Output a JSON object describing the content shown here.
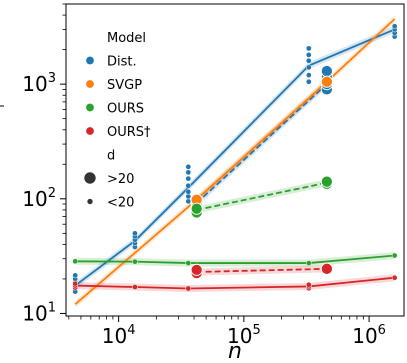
{
  "chart_data": {
    "type": "line",
    "xlabel": "n",
    "ylabel": "",
    "xscale": "log",
    "yscale": "log",
    "xlim": [
      3800,
      1900000
    ],
    "ylim": [
      9.5,
      5000
    ],
    "x_ticks": [
      {
        "value": 10000,
        "base": "10",
        "exp": "4"
      },
      {
        "value": 100000,
        "base": "10",
        "exp": "5"
      },
      {
        "value": 1000000,
        "base": "10",
        "exp": "6"
      }
    ],
    "y_ticks": [
      {
        "value": 10,
        "base": "10",
        "exp": "1"
      },
      {
        "value": 100,
        "base": "10",
        "exp": "2"
      },
      {
        "value": 1000,
        "base": "10",
        "exp": "3"
      }
    ],
    "grid": false,
    "legend": {
      "placement": "top-left",
      "hue_title": "Model",
      "size_title": "d",
      "size_entries": [
        ">20",
        "<20"
      ]
    },
    "series": [
      {
        "name": "Dist.",
        "color": "#1f77b4",
        "lines": [
          {
            "style": "solid",
            "x": [
              4500,
              13500,
              36000,
              330000,
              1600000
            ],
            "y": [
              17.5,
              43,
              125,
              1450,
              3000
            ]
          },
          {
            "style": "dashed",
            "x": [
              42000,
              460000
            ],
            "y": [
              92,
              1000
            ]
          }
        ],
        "points": [
          {
            "size": "small",
            "x": 4500,
            "y": [
              15.5,
              17,
              18.5,
              20,
              21.5
            ]
          },
          {
            "size": "small",
            "x": 13500,
            "y": [
              38,
              41,
              44,
              47,
              50
            ]
          },
          {
            "size": "small",
            "x": 36000,
            "y": [
              95,
              105,
              115,
              130,
              150,
              170,
              190
            ]
          },
          {
            "size": "small",
            "x": 330000,
            "y": [
              1050,
              1200,
              1400,
              1600,
              1800,
              2050
            ]
          },
          {
            "size": "small",
            "x": 1600000,
            "y": [
              2600,
              2800,
              3000,
              3200
            ]
          },
          {
            "size": "large",
            "x": 42000,
            "y": [
              88,
              93,
              98
            ]
          },
          {
            "size": "large",
            "x": 460000,
            "y": [
              900,
              1000,
              1150,
              1300
            ]
          }
        ]
      },
      {
        "name": "SVGP",
        "color": "#ff7f0e",
        "lines": [
          {
            "style": "solid",
            "x": [
              4500,
              36000,
              330000,
              1600000
            ],
            "y": [
              12,
              85,
              750,
              3700
            ]
          },
          {
            "style": "dashed",
            "x": [
              42000,
              460000
            ],
            "y": [
              98,
              1050
            ]
          }
        ],
        "points": [
          {
            "size": "large",
            "x": 42000,
            "y": [
              98
            ]
          },
          {
            "size": "large",
            "x": 460000,
            "y": [
              1050
            ]
          }
        ]
      },
      {
        "name": "OURS",
        "color": "#2ca02c",
        "lines": [
          {
            "style": "solid",
            "x": [
              4500,
              13500,
              36000,
              330000,
              1600000
            ],
            "y": [
              28.5,
              28.3,
              27.5,
              27.5,
              32
            ]
          },
          {
            "style": "dashed",
            "x": [
              42000,
              460000
            ],
            "y": [
              80,
              138
            ]
          }
        ],
        "points": [
          {
            "size": "small",
            "x": 4500,
            "y": [
              28.5
            ]
          },
          {
            "size": "small",
            "x": 13500,
            "y": [
              28.3
            ]
          },
          {
            "size": "small",
            "x": 36000,
            "y": [
              27.5
            ]
          },
          {
            "size": "small",
            "x": 330000,
            "y": [
              27.5
            ]
          },
          {
            "size": "small",
            "x": 1600000,
            "y": [
              32
            ]
          },
          {
            "size": "large",
            "x": 42000,
            "y": [
              76,
              82
            ]
          },
          {
            "size": "large",
            "x": 460000,
            "y": [
              135,
              141
            ]
          }
        ]
      },
      {
        "name": "OURS†",
        "color": "#d62728",
        "lines": [
          {
            "style": "solid",
            "x": [
              4500,
              13500,
              36000,
              330000,
              1600000
            ],
            "y": [
              17.5,
              17,
              16.5,
              17.2,
              20.5
            ]
          },
          {
            "style": "dashed",
            "x": [
              42000,
              460000
            ],
            "y": [
              23,
              24.5
            ]
          }
        ],
        "points": [
          {
            "size": "small",
            "x": 4500,
            "y": [
              16.8,
              17.5,
              18.2
            ]
          },
          {
            "size": "small",
            "x": 13500,
            "y": [
              17
            ]
          },
          {
            "size": "small",
            "x": 36000,
            "y": [
              16.5
            ]
          },
          {
            "size": "small",
            "x": 330000,
            "y": [
              16.6,
              17.2,
              17.8
            ]
          },
          {
            "size": "small",
            "x": 1600000,
            "y": [
              20.5
            ]
          },
          {
            "size": "large",
            "x": 42000,
            "y": [
              22.5,
              24
            ]
          },
          {
            "size": "large",
            "x": 460000,
            "y": [
              24.5
            ]
          }
        ]
      }
    ]
  }
}
